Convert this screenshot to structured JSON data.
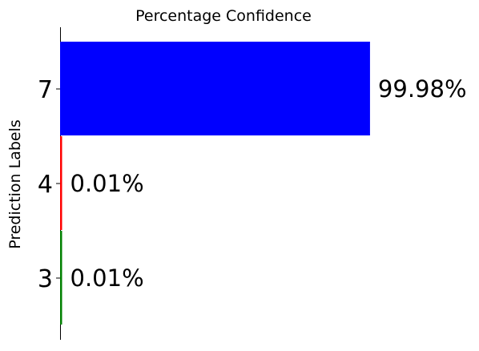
{
  "chart_data": {
    "type": "bar",
    "orientation": "horizontal",
    "title": "Percentage Confidence",
    "xlabel": "",
    "ylabel": "Prediction Labels",
    "categories": [
      "3",
      "4",
      "7"
    ],
    "values": [
      0.01,
      0.01,
      99.98
    ],
    "value_labels": [
      "0.01%",
      "0.01%",
      "99.98%"
    ],
    "colors": [
      "#008000",
      "#ff0000",
      "#0000ff"
    ],
    "xlim": [
      0,
      100
    ],
    "grid": false,
    "legend": "none",
    "x_axis_visible": false
  }
}
